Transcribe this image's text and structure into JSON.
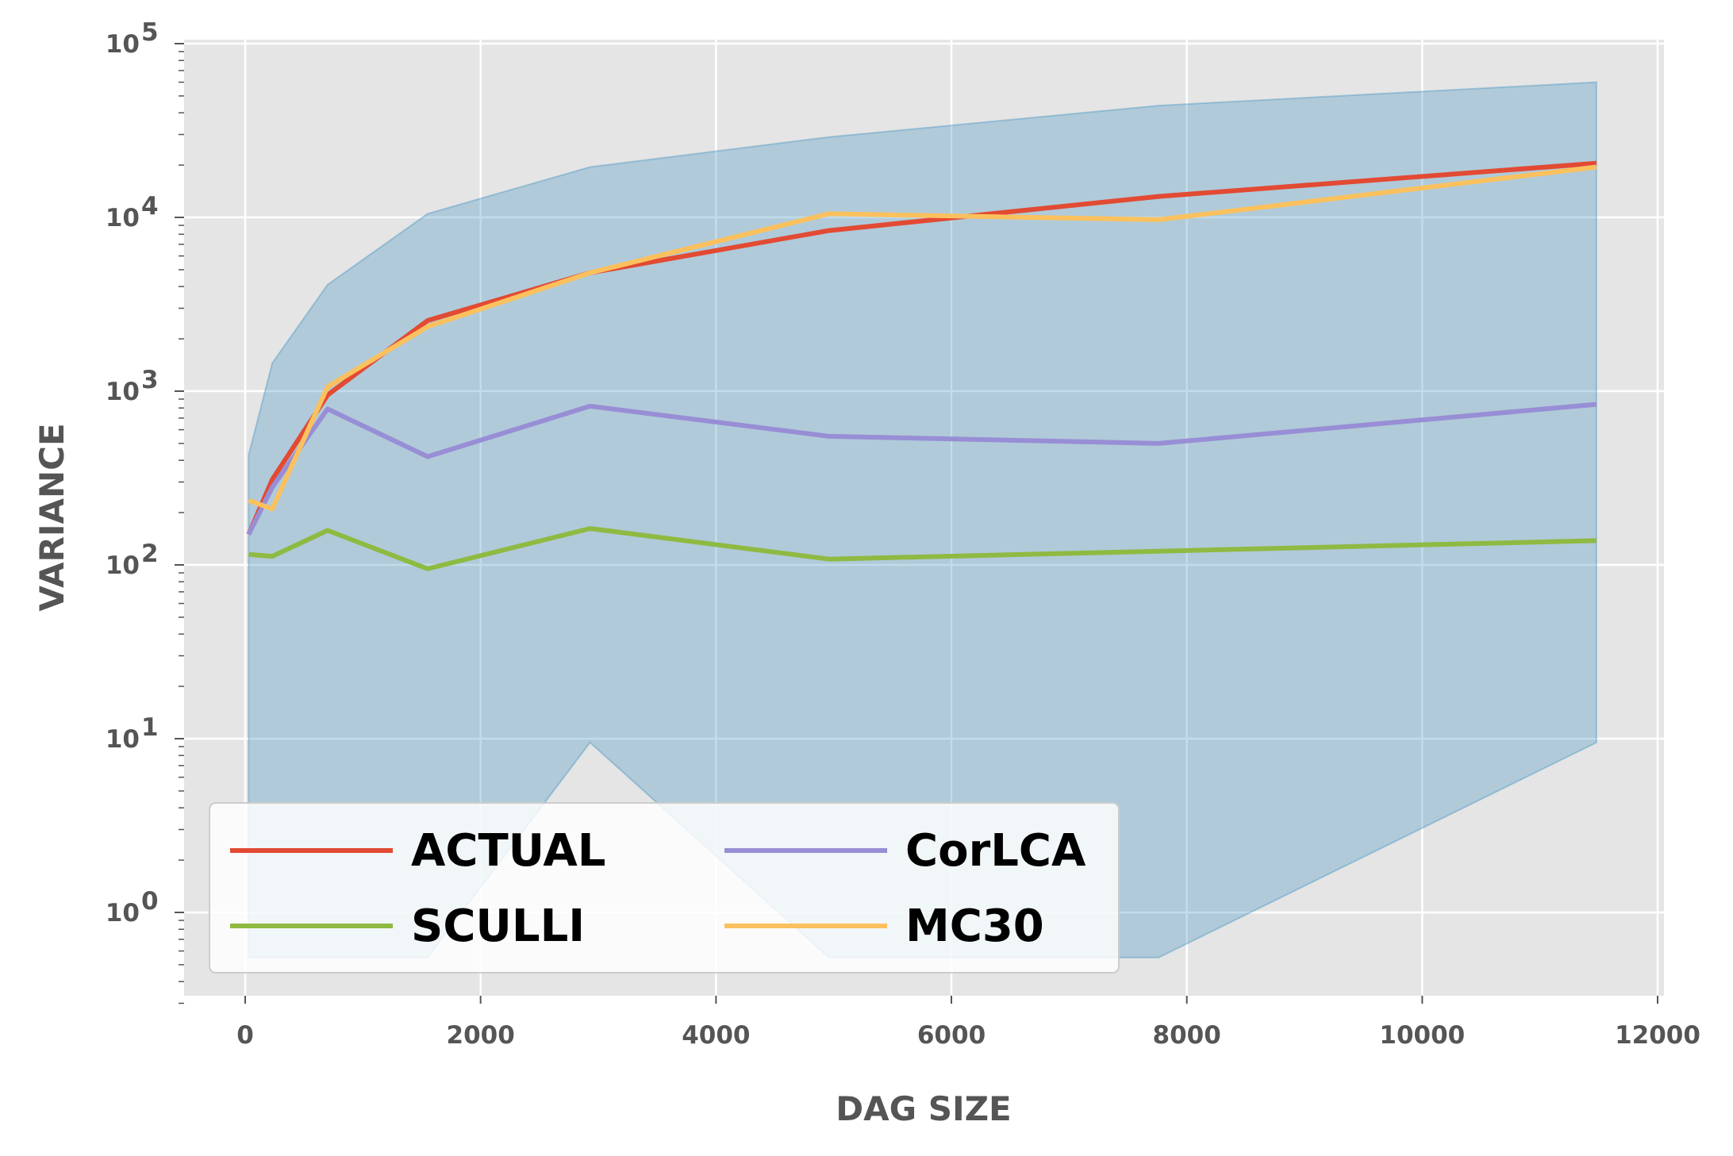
{
  "chart_data": {
    "type": "line",
    "xlabel": "DAG SIZE",
    "ylabel": "VARIANCE",
    "xlim": [
      -500,
      12000
    ],
    "ylim": [
      0.3,
      100000
    ],
    "yscale": "log",
    "grid": true,
    "legend_position": "lower-left",
    "x_ticks": [
      0,
      2000,
      4000,
      6000,
      8000,
      10000,
      12000
    ],
    "x_tick_labels": [
      "0",
      "2000",
      "4000",
      "6000",
      "8000",
      "10000",
      "12000"
    ],
    "y_ticks": [
      {
        "value": 1,
        "base": "10",
        "exp": "0"
      },
      {
        "value": 10,
        "base": "10",
        "exp": "1"
      },
      {
        "value": 100,
        "base": "10",
        "exp": "2"
      },
      {
        "value": 1000,
        "base": "10",
        "exp": "3"
      },
      {
        "value": 10000,
        "base": "10",
        "exp": "4"
      },
      {
        "value": 100000,
        "base": "10",
        "exp": "5"
      }
    ],
    "band": {
      "color": "#348abd",
      "x": [
        30,
        230,
        700,
        1550,
        2930,
        4960,
        7760,
        11480
      ],
      "upper": [
        430,
        1450,
        4100,
        10500,
        19500,
        29000,
        44000,
        60000
      ],
      "lower": [
        0.55,
        0.55,
        0.55,
        0.55,
        9.5,
        0.55,
        0.55,
        9.5
      ]
    },
    "series": [
      {
        "name": "ACTUAL",
        "color": "#e24a33",
        "x": [
          30,
          230,
          700,
          1550,
          2930,
          4960,
          7760,
          11480
        ],
        "values": [
          150,
          310,
          950,
          2550,
          4800,
          8400,
          13200,
          20500
        ]
      },
      {
        "name": "SCULLI",
        "color": "#8eba42",
        "x": [
          30,
          230,
          700,
          1550,
          2930,
          4960,
          7760,
          11480
        ],
        "values": [
          115,
          112,
          158,
          95,
          162,
          108,
          120,
          138
        ]
      },
      {
        "name": "CorLCA",
        "color": "#988ed5",
        "x": [
          30,
          230,
          700,
          1550,
          2930,
          4960,
          7760,
          11480
        ],
        "values": [
          150,
          280,
          790,
          420,
          820,
          550,
          500,
          840
        ]
      },
      {
        "name": "MC30",
        "color": "#fbc15e",
        "x": [
          30,
          230,
          700,
          1550,
          2930,
          4960,
          7760,
          11480
        ],
        "values": [
          235,
          210,
          1060,
          2350,
          4800,
          10500,
          9700,
          19500
        ]
      }
    ]
  }
}
